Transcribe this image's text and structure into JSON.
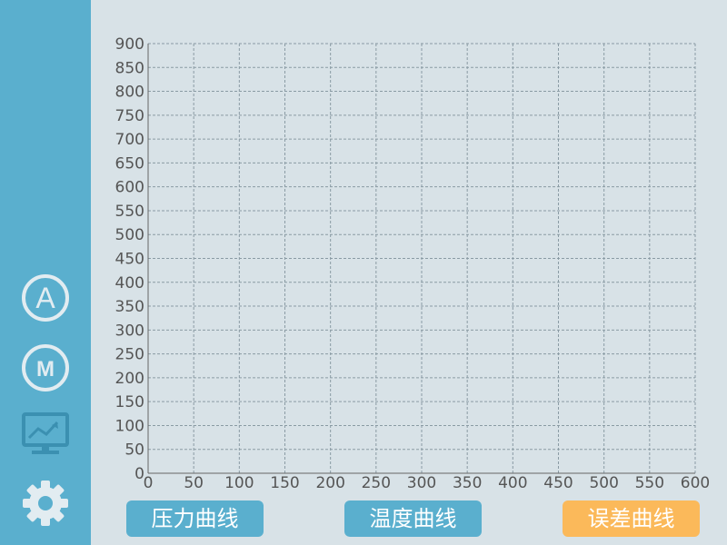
{
  "sidebar": {
    "items": [
      {
        "id": "auto",
        "label": "A",
        "icon": "circle-letter-a-icon"
      },
      {
        "id": "manual",
        "label": "M",
        "icon": "circle-letter-m-icon"
      },
      {
        "id": "monitor",
        "icon": "monitor-chart-icon"
      },
      {
        "id": "settings",
        "icon": "gear-icon"
      }
    ]
  },
  "buttons": {
    "pressure": {
      "label": "压力曲线",
      "color": "#5aafce"
    },
    "temperature": {
      "label": "温度曲线",
      "color": "#5aafce"
    },
    "error": {
      "label": "误差曲线",
      "color": "#fbb95a"
    }
  },
  "colors": {
    "background": "#d8e2e7",
    "sidebar": "#5aafce",
    "icon": "#e2ecf1",
    "grid": "#8a9ba4",
    "axis_text": "#555555"
  },
  "chart_data": {
    "type": "line",
    "xlim": [
      0,
      600
    ],
    "ylim": [
      0,
      900
    ],
    "x_ticks": [
      0,
      50,
      100,
      150,
      200,
      250,
      300,
      350,
      400,
      450,
      500,
      550,
      600
    ],
    "y_ticks": [
      0,
      50,
      100,
      150,
      200,
      250,
      300,
      350,
      400,
      450,
      500,
      550,
      600,
      650,
      700,
      750,
      800,
      850,
      900
    ],
    "grid": true,
    "grid_style": "dashed",
    "series": []
  }
}
